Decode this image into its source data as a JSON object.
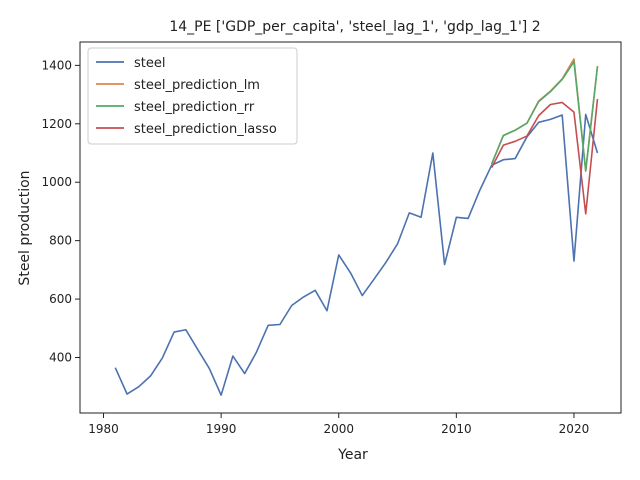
{
  "chart_data": {
    "type": "line",
    "title": "14_PE ['GDP_per_capita', 'steel_lag_1', 'gdp_lag_1'] 2",
    "xlabel": "Year",
    "ylabel": "Steel production",
    "xlim": [
      1978.0,
      2024.0
    ],
    "ylim": [
      210,
      1480
    ],
    "xticks": [
      1980,
      1990,
      2000,
      2010,
      2020
    ],
    "yticks": [
      400,
      600,
      800,
      1000,
      1200,
      1400
    ],
    "grid": false,
    "legend_position": "top-left",
    "series": [
      {
        "name": "steel",
        "color": "#4c72b0",
        "x": [
          1981,
          1982,
          1983,
          1984,
          1985,
          1986,
          1987,
          1988,
          1989,
          1990,
          1991,
          1992,
          1993,
          1994,
          1995,
          1996,
          1997,
          1998,
          1999,
          2000,
          2001,
          2002,
          2003,
          2004,
          2005,
          2006,
          2007,
          2008,
          2009,
          2010,
          2011,
          2012,
          2013,
          2014,
          2015,
          2016,
          2017,
          2018,
          2019,
          2020,
          2021,
          2022
        ],
        "y": [
          365,
          275,
          300,
          337,
          398,
          487,
          495,
          428,
          362,
          271,
          405,
          345,
          418,
          510,
          513,
          578,
          607,
          630,
          560,
          751,
          690,
          612,
          668,
          725,
          789,
          895,
          880,
          1100,
          718,
          880,
          876,
          973,
          1058,
          1077,
          1081,
          1155,
          1205,
          1215,
          1230,
          730,
          1232,
          1100
        ]
      },
      {
        "name": "steel_prediction_lm",
        "color": "#dd8452",
        "x": [
          2013,
          2014,
          2015,
          2016,
          2017,
          2018,
          2019,
          2020,
          2021,
          2022
        ],
        "y": [
          1062,
          1160,
          1178,
          1202,
          1278,
          1312,
          1354,
          1422,
          1038,
          1398
        ]
      },
      {
        "name": "steel_prediction_rr",
        "color": "#55a868",
        "x": [
          2013,
          2014,
          2015,
          2016,
          2017,
          2018,
          2019,
          2020,
          2021,
          2022
        ],
        "y": [
          1062,
          1160,
          1178,
          1202,
          1276,
          1310,
          1352,
          1412,
          1040,
          1396
        ]
      },
      {
        "name": "steel_prediction_lasso",
        "color": "#c44e52",
        "x": [
          2013,
          2014,
          2015,
          2016,
          2017,
          2018,
          2019,
          2020,
          2021,
          2022
        ],
        "y": [
          1050,
          1127,
          1140,
          1158,
          1228,
          1266,
          1273,
          1240,
          892,
          1285
        ]
      }
    ]
  }
}
